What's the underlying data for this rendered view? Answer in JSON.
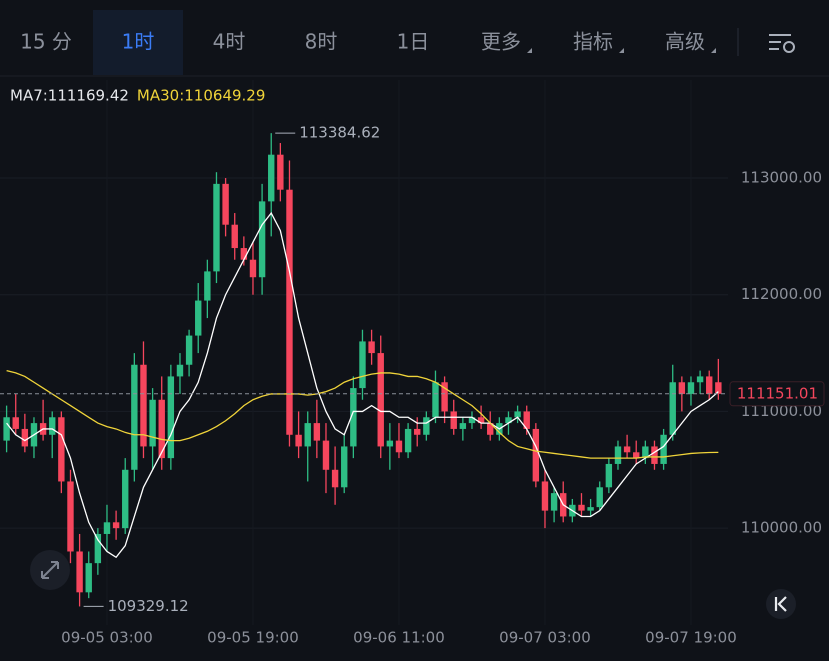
{
  "tabs": [
    "15 分",
    "1时",
    "4时",
    "8时",
    "1日",
    "更多",
    "指标",
    "高级"
  ],
  "active_tab": "1时",
  "chart_data": {
    "type": "candlestick",
    "categories": [
      null,
      null,
      null,
      null,
      null,
      null,
      null,
      null,
      null,
      null,
      null,
      "09-05 03:00",
      null,
      null,
      null,
      null,
      null,
      null,
      null,
      null,
      null,
      null,
      null,
      null,
      null,
      null,
      null,
      "09-05 19:00",
      null,
      null,
      null,
      null,
      null,
      null,
      null,
      null,
      null,
      null,
      null,
      null,
      null,
      null,
      null,
      "09-06 11:00",
      null,
      null,
      null,
      null,
      null,
      null,
      null,
      null,
      null,
      null,
      null,
      null,
      null,
      null,
      null,
      "09-07 03:00",
      null,
      null,
      null,
      null,
      null,
      null,
      null,
      null,
      null,
      null,
      null,
      null,
      null,
      null,
      null,
      "09-07 19:00",
      null,
      null,
      null
    ],
    "open": [
      110750,
      110950,
      110850,
      110700,
      110900,
      110800,
      110950,
      110400,
      109800,
      109450,
      109700,
      109950,
      110050,
      110000,
      110500,
      111400,
      110700,
      111100,
      110600,
      111300,
      111400,
      111650,
      111950,
      112200,
      112950,
      112600,
      112400,
      112300,
      112150,
      112800,
      113200,
      112900,
      110800,
      110700,
      110900,
      110750,
      110500,
      110350,
      110700,
      111200,
      111600,
      111500,
      110700,
      110750,
      110650,
      110850,
      110800,
      110950,
      111250,
      111000,
      110850,
      110900,
      110950,
      110900,
      110800,
      110900,
      110950,
      111000,
      110850,
      110400,
      110150,
      110300,
      110100,
      110200,
      110150,
      110180,
      110350,
      110550,
      110700,
      110650,
      110600,
      110700,
      110550,
      110800,
      111250,
      111150,
      111250,
      111300,
      111250
    ],
    "high": [
      111050,
      111150,
      110980,
      110950,
      111100,
      111000,
      111000,
      110500,
      109950,
      109800,
      110000,
      110200,
      110150,
      110600,
      111500,
      111600,
      111200,
      111300,
      111400,
      111500,
      111700,
      112100,
      112300,
      113050,
      113000,
      112700,
      112500,
      112450,
      112950,
      113384.62,
      113300,
      113150,
      111000,
      111000,
      111100,
      110900,
      110700,
      110800,
      111300,
      111700,
      111700,
      111650,
      110900,
      110900,
      110900,
      110950,
      111000,
      111350,
      111300,
      111100,
      110950,
      111000,
      111050,
      111000,
      110950,
      111000,
      111050,
      111050,
      110900,
      110500,
      110350,
      110400,
      110250,
      110300,
      110250,
      110400,
      110600,
      110750,
      110800,
      110750,
      110750,
      110750,
      110850,
      111400,
      111300,
      111300,
      111350,
      111350,
      111450
    ],
    "low": [
      110650,
      110800,
      110650,
      110600,
      110750,
      110600,
      110300,
      109700,
      109329.12,
      109400,
      109600,
      109800,
      109900,
      109950,
      110400,
      110600,
      110500,
      110500,
      110500,
      111150,
      111300,
      111500,
      111800,
      112100,
      112500,
      112300,
      112250,
      112000,
      112000,
      112500,
      112800,
      110700,
      110600,
      110400,
      110600,
      110300,
      110200,
      110300,
      110600,
      111100,
      111400,
      110600,
      110500,
      110600,
      110600,
      110700,
      110750,
      110900,
      110900,
      110800,
      110750,
      110850,
      110850,
      110750,
      110750,
      110800,
      110900,
      110800,
      110350,
      110000,
      110050,
      110050,
      110050,
      110100,
      110100,
      110150,
      110300,
      110500,
      110600,
      110550,
      110550,
      110500,
      110500,
      110750,
      111000,
      111050,
      111150,
      111100,
      111100
    ],
    "close": [
      110950,
      110850,
      110700,
      110900,
      110800,
      110950,
      110400,
      109800,
      109450,
      109700,
      109950,
      110050,
      110000,
      110500,
      111400,
      110700,
      111100,
      110600,
      111300,
      111400,
      111650,
      111950,
      112200,
      112950,
      112600,
      112400,
      112300,
      112150,
      112800,
      113200,
      112900,
      110800,
      110700,
      110900,
      110750,
      110500,
      110350,
      110700,
      111200,
      111600,
      111500,
      110700,
      110750,
      110650,
      110850,
      110800,
      110950,
      111250,
      111000,
      110850,
      110900,
      110950,
      110900,
      110800,
      110900,
      110950,
      111000,
      110850,
      110400,
      110150,
      110300,
      110100,
      110200,
      110150,
      110180,
      110350,
      110550,
      110700,
      110650,
      110600,
      110700,
      110550,
      110800,
      111250,
      111150,
      111250,
      111300,
      111150,
      111151.01
    ],
    "up_color": "#2ebd85",
    "down_color": "#f6465d",
    "series": [
      {
        "label": "MA7:111169.42",
        "color": "#ffffff",
        "values": [
          110900,
          110800,
          110750,
          110800,
          110850,
          110850,
          110800,
          110600,
          110300,
          110050,
          109900,
          109800,
          109750,
          109850,
          110100,
          110350,
          110500,
          110650,
          110800,
          111000,
          111100,
          111250,
          111500,
          111800,
          112000,
          112150,
          112300,
          112450,
          112600,
          112700,
          112550,
          112200,
          111800,
          111500,
          111200,
          111000,
          110850,
          110800,
          111000,
          111000,
          111050,
          111000,
          111000,
          110950,
          110950,
          110900,
          110900,
          110950,
          110950,
          110950,
          110950,
          110950,
          110900,
          110900,
          110850,
          110900,
          110950,
          110850,
          110700,
          110500,
          110350,
          110200,
          110150,
          110100,
          110100,
          110150,
          110250,
          110350,
          110450,
          110550,
          110600,
          110650,
          110700,
          110800,
          110900,
          111000,
          111050,
          111100,
          111169.42
        ]
      },
      {
        "label": "MA30:110649.29",
        "color": "#f0d43a",
        "values": [
          111350,
          111330,
          111300,
          111250,
          111200,
          111150,
          111100,
          111050,
          111000,
          110950,
          110900,
          110870,
          110850,
          110820,
          110800,
          110800,
          110780,
          110760,
          110750,
          110750,
          110770,
          110800,
          110830,
          110870,
          110920,
          110980,
          111050,
          111100,
          111130,
          111150,
          111150,
          111150,
          111150,
          111140,
          111150,
          111170,
          111200,
          111250,
          111280,
          111300,
          111320,
          111330,
          111330,
          111320,
          111300,
          111300,
          111280,
          111250,
          111200,
          111150,
          111100,
          111050,
          110980,
          110900,
          110820,
          110750,
          110700,
          110680,
          110660,
          110650,
          110640,
          110630,
          110620,
          110610,
          110600,
          110600,
          110600,
          110600,
          110600,
          110600,
          110610,
          110610,
          110610,
          110620,
          110630,
          110640,
          110645,
          110648,
          110649.29
        ]
      }
    ],
    "ylim": [
      109170,
      113840
    ],
    "yticks": [
      {
        "value": 110000,
        "label": "110000.00"
      },
      {
        "value": 111000,
        "label": "111000.00"
      },
      {
        "value": 112000,
        "label": "112000.00"
      },
      {
        "value": 113000,
        "label": "113000.00"
      }
    ],
    "grid": true,
    "last_price": {
      "value": 111151.01,
      "label": "111151.01"
    },
    "annotations": [
      {
        "value": 113384.62,
        "label": "113384.62"
      },
      {
        "value": 109329.12,
        "label": "109329.12"
      }
    ]
  }
}
